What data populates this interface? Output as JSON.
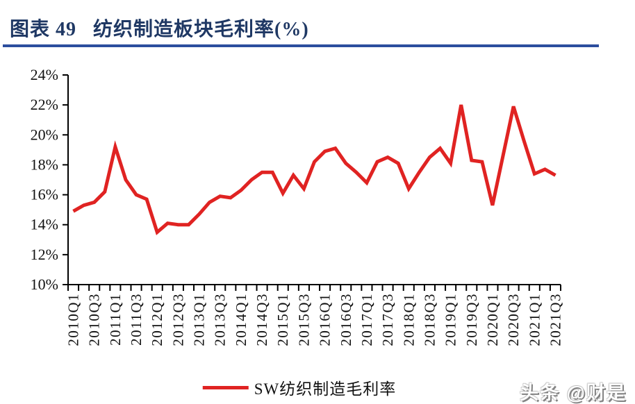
{
  "header": {
    "title": "图表 49   纺织制造板块毛利率(%)"
  },
  "legend": {
    "label": "SW纺织制造毛利率"
  },
  "watermark": {
    "text": "头条 @财是"
  },
  "colors": {
    "series_red": "#E02322",
    "title_navy": "#1F3864",
    "rule_blue": "#2C4E9E",
    "axis_black": "#000000"
  },
  "chart_data": {
    "type": "line",
    "title": "纺织制造板块毛利率(%)",
    "xlabel": "",
    "ylabel": "",
    "ylim": [
      10,
      24
    ],
    "ytick_step": 2,
    "ytick_labels": [
      "10%",
      "12%",
      "14%",
      "16%",
      "18%",
      "20%",
      "22%",
      "24%"
    ],
    "grid": false,
    "legend_position": "bottom",
    "xtick_label_every": 2,
    "categories": [
      "2010Q1",
      "2010Q2",
      "2010Q3",
      "2010Q4",
      "2011Q1",
      "2011Q2",
      "2011Q3",
      "2011Q4",
      "2012Q1",
      "2012Q2",
      "2012Q3",
      "2012Q4",
      "2013Q1",
      "2013Q2",
      "2013Q3",
      "2013Q4",
      "2014Q1",
      "2014Q2",
      "2014Q3",
      "2014Q4",
      "2015Q1",
      "2015Q2",
      "2015Q3",
      "2015Q4",
      "2016Q1",
      "2016Q2",
      "2016Q3",
      "2016Q4",
      "2017Q1",
      "2017Q2",
      "2017Q3",
      "2017Q4",
      "2018Q1",
      "2018Q2",
      "2018Q3",
      "2018Q4",
      "2019Q1",
      "2019Q2",
      "2019Q3",
      "2019Q4",
      "2020Q1",
      "2020Q2",
      "2020Q3",
      "2020Q4",
      "2021Q1",
      "2021Q2",
      "2021Q3"
    ],
    "series": [
      {
        "name": "SW纺织制造毛利率",
        "color": "#E02322",
        "values": [
          14.9,
          15.3,
          15.5,
          16.2,
          19.2,
          17.0,
          16.0,
          15.7,
          13.5,
          14.1,
          14.0,
          14.0,
          14.7,
          15.5,
          15.9,
          15.8,
          16.3,
          17.0,
          17.5,
          17.5,
          16.1,
          17.3,
          16.4,
          18.2,
          18.9,
          19.1,
          18.1,
          17.5,
          16.8,
          18.2,
          18.5,
          18.1,
          16.4,
          17.5,
          18.5,
          19.1,
          18.1,
          22.0,
          18.3,
          18.2,
          15.3,
          18.6,
          21.9,
          19.6,
          17.4,
          17.7,
          17.3
        ]
      }
    ]
  }
}
